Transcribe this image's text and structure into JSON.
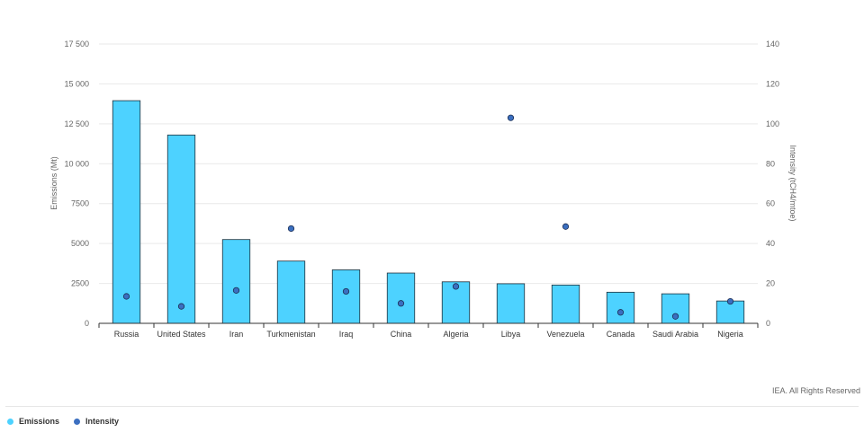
{
  "chart_data": {
    "type": "bar",
    "categories": [
      "Russia",
      "United States",
      "Iran",
      "Turkmenistan",
      "Iraq",
      "China",
      "Algeria",
      "Libya",
      "Venezuela",
      "Canada",
      "Saudi Arabia",
      "Nigeria"
    ],
    "series": [
      {
        "name": "Emissions",
        "type": "bar",
        "axis": "left",
        "values": [
          13950,
          11800,
          5250,
          3900,
          3350,
          3150,
          2600,
          2480,
          2400,
          1950,
          1850,
          1400
        ]
      },
      {
        "name": "Intensity",
        "type": "scatter",
        "axis": "right",
        "values": [
          13.5,
          8.5,
          16.5,
          47.5,
          16,
          10,
          18.5,
          103,
          48.5,
          5.5,
          3.5,
          11
        ]
      }
    ],
    "ylabel": "Emissions (Mt)",
    "ylabel_right": "Intensity (tCH4/mtoe)",
    "ylim": [
      0,
      17500
    ],
    "ylim_right": [
      0,
      140
    ],
    "yticks": [
      0,
      2500,
      5000,
      7500,
      10000,
      12500,
      15000,
      17500
    ],
    "ytick_labels": [
      "0",
      "2500",
      "5000",
      "7500",
      "10 000",
      "12 500",
      "15 000",
      "17 500"
    ],
    "yticks_right": [
      0,
      20,
      40,
      60,
      80,
      100,
      120,
      140
    ],
    "grid": true,
    "legend_position": "bottom-left",
    "colors": {
      "Emissions": "#4dd2ff",
      "Intensity": "#3b6fc0"
    }
  },
  "credit": "IEA. All Rights Reserved",
  "legend": {
    "emissions": "Emissions",
    "intensity": "Intensity"
  }
}
